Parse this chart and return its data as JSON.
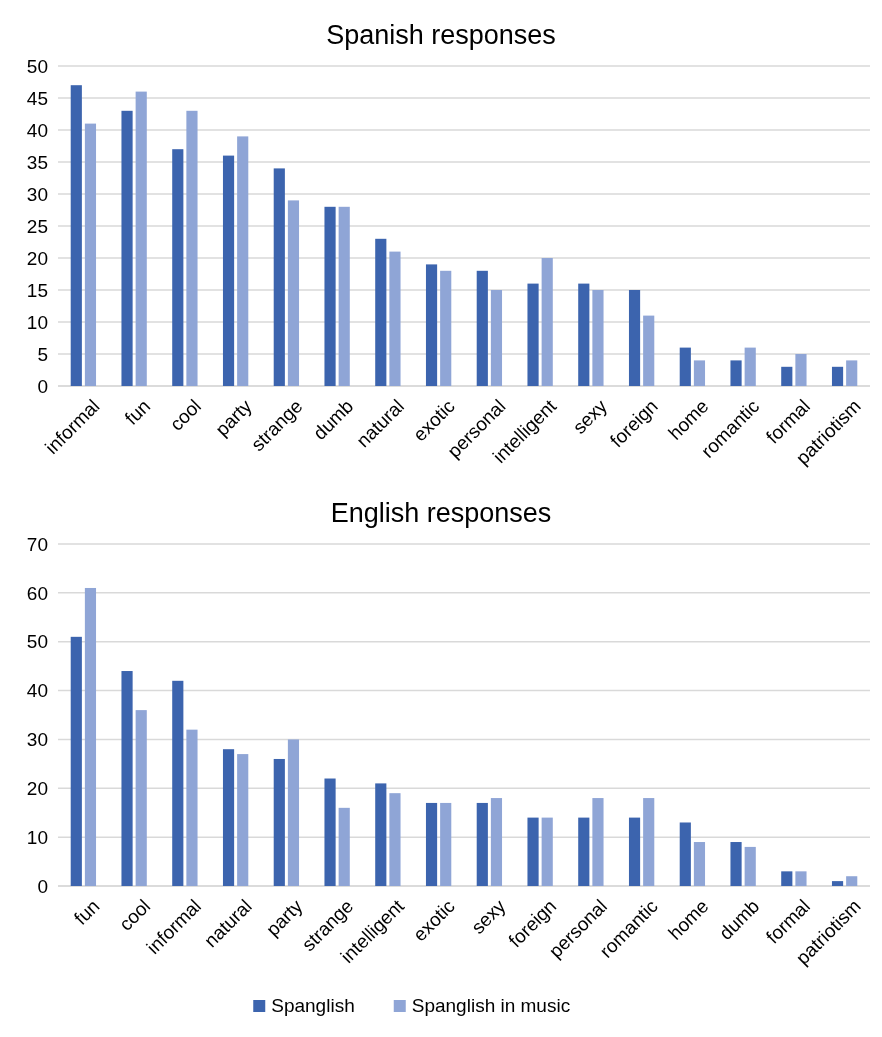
{
  "chart_data": [
    {
      "type": "bar",
      "title": "Spanish responses",
      "categories": [
        "informal",
        "fun",
        "cool",
        "party",
        "strange",
        "dumb",
        "natural",
        "exotic",
        "personal",
        "intelligent",
        "sexy",
        "foreign",
        "home",
        "romantic",
        "formal",
        "patriotism"
      ],
      "series": [
        {
          "color": "#3c64ae",
          "values": [
            47,
            43,
            37,
            36,
            34,
            28,
            23,
            19,
            18,
            16,
            16,
            15,
            6,
            4,
            3,
            3
          ]
        },
        {
          "color": "#8fa5d6",
          "values": [
            41,
            46,
            43,
            39,
            29,
            28,
            21,
            18,
            15,
            20,
            15,
            11,
            4,
            6,
            5,
            4
          ]
        }
      ],
      "ylim": [
        0,
        50
      ],
      "yticks": [
        0,
        5,
        10,
        15,
        20,
        25,
        30,
        35,
        40,
        45,
        50
      ],
      "grid": "y",
      "legend": false
    },
    {
      "type": "bar",
      "title": "English responses",
      "categories": [
        "fun",
        "cool",
        "informal",
        "natural",
        "party",
        "strange",
        "intelligent",
        "exotic",
        "sexy",
        "foreign",
        "personal",
        "romantic",
        "home",
        "dumb",
        "formal",
        "patriotism"
      ],
      "series": [
        {
          "name": "Spanglish",
          "color": "#3c64ae",
          "values": [
            51,
            44,
            42,
            28,
            26,
            22,
            21,
            17,
            17,
            14,
            14,
            14,
            13,
            9,
            3,
            1
          ]
        },
        {
          "name": "Spanglish in music",
          "color": "#8fa5d6",
          "values": [
            61,
            36,
            32,
            27,
            30,
            16,
            19,
            17,
            18,
            14,
            18,
            18,
            9,
            8,
            3,
            2
          ]
        }
      ],
      "ylim": [
        0,
        70
      ],
      "yticks": [
        0,
        10,
        20,
        30,
        40,
        50,
        60,
        70
      ],
      "grid": "y",
      "legend": "bottom"
    }
  ]
}
